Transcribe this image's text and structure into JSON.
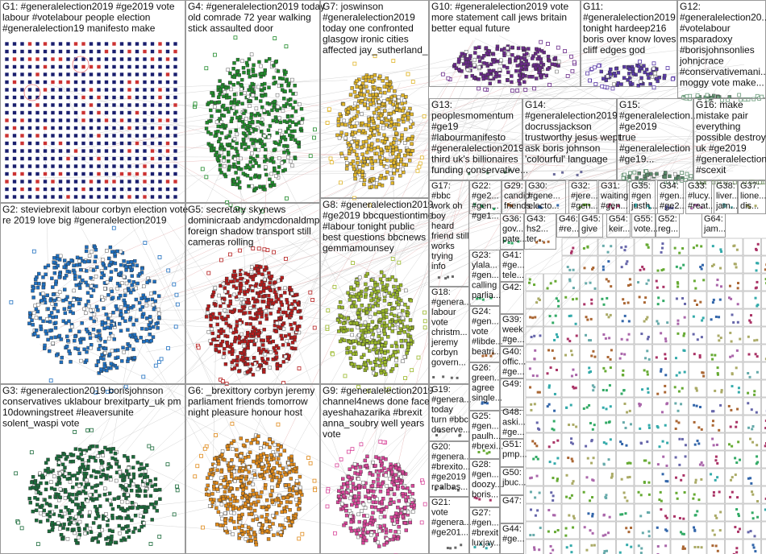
{
  "groups": [
    {
      "lines": [
        "G1: #generalelection2019 #ge2019 vote",
        "labour #votelabour people election",
        "#generalelection19 manifesto make"
      ]
    },
    {
      "lines": [
        "G4: #generalelection2019 today",
        "old comrade 72 year walking",
        "stick assaulted door"
      ]
    },
    {
      "lines": [
        "G7: joswinson",
        "#generalelection2019",
        "today one confronted",
        "glasgow ironic cities",
        "affected jay_sutherland_"
      ]
    },
    {
      "lines": [
        "G10: #generalelection2019 vote",
        "more statement call jews britain",
        "better equal future"
      ]
    },
    {
      "lines": [
        "G11:",
        "#generalelection2019",
        "tonight hardeep216",
        "boris over know loves",
        "cliff edges god"
      ]
    },
    {
      "lines": [
        "G12:",
        "#generalelection20...",
        "#votelabour",
        "msparadoxy",
        "#borisjohnsonlies",
        "johnjcrace",
        "#conservativemani...",
        "moggy vote make..."
      ]
    },
    {
      "lines": [
        "G13:",
        "peoplesmomentum",
        "#ge19",
        "#labourmanifesto",
        "#generalelection2019",
        "third uk's billionaires",
        "funding conservative..."
      ]
    },
    {
      "lines": [
        "G14:",
        "#generalelection2019",
        "docrussjackson",
        "trustworthy jesus wept",
        "ask boris johnson",
        "'colourful' language"
      ]
    },
    {
      "lines": [
        "G15:",
        "#generalelection...",
        "#ge2019",
        "true",
        "#generalelection",
        "#ge19..."
      ]
    },
    {
      "lines": [
        "G16: make",
        "mistake pair",
        "everything",
        "possible destroy",
        "uk #ge2019",
        "#generalelection...",
        "#scexit"
      ]
    },
    {
      "lines": [
        "G2: steviebrexit labour corbyn election vote",
        "re 2019 love big #generalelection2019"
      ]
    },
    {
      "lines": [
        "G5: secretary skynews",
        "dominicraab andymcdonaldmp",
        "foreign shadow transport still",
        "cameras rolling"
      ]
    },
    {
      "lines": [
        "G8: #generalelection2019",
        "#ge2019 bbcquestiontime",
        "#labour tonight public",
        "best questions bbcnews",
        "gemmamounsey"
      ]
    },
    {
      "lines": [
        "G3: #generalection2019 borisjohnson",
        "conservatives uklabour brexitparty_uk pm",
        "10downingstreet #leaversunite",
        "solent_waspi vote"
      ]
    },
    {
      "lines": [
        "G6: _brexittory corbyn jeremy",
        "parliament friends tomorrow",
        "night pleasure honour host"
      ]
    },
    {
      "lines": [
        "G9: #generalelection2019",
        "channel4news done face",
        "ayeshahazarika #brexit",
        "anna_soubry well years",
        "vote"
      ]
    },
    {
      "lines": [
        "G17:",
        "#bbc",
        "work oh",
        "boy",
        "heard",
        "friend still",
        "works",
        "trying",
        "info"
      ]
    },
    {
      "lines": [
        "G18:",
        "#genera...",
        "labour",
        "vote",
        "christm...",
        "jeremy",
        "corbyn",
        "govern..."
      ]
    },
    {
      "lines": [
        "G19:",
        "#genera...",
        "today",
        "turn #bbc",
        "deserve..."
      ]
    },
    {
      "lines": [
        "G20:",
        "#genera...",
        "#brexito...",
        "#ge2019",
        "realbas..."
      ]
    },
    {
      "lines": [
        "G21:",
        "vote",
        "#genera...",
        "#ge201..."
      ]
    },
    {
      "lines": [
        "G22:",
        "#ge2...",
        "#gen...",
        "#ge1..."
      ]
    },
    {
      "lines": [
        "G29:",
        "candid...",
        "friends..."
      ]
    },
    {
      "lines": [
        "G30:",
        "#gene...",
        "electo..."
      ]
    },
    {
      "lines": [
        "G32:",
        "#jere...",
        "#gen..."
      ]
    },
    {
      "lines": [
        "G31:",
        "waiting",
        "#gen..."
      ]
    },
    {
      "lines": [
        "G35:",
        "#gen",
        "justh..."
      ]
    },
    {
      "lines": [
        "G34:",
        "#gen...",
        "#ge2..."
      ]
    },
    {
      "lines": [
        "G33:",
        "#lucy...",
        "#reat..."
      ]
    },
    {
      "lines": [
        "G38:",
        "liver...",
        "jam..."
      ]
    },
    {
      "lines": [
        "G37:",
        "lione...",
        "dis..."
      ]
    },
    {
      "lines": [
        "G36:",
        "gov...",
        "pate..."
      ]
    },
    {
      "lines": [
        "G43:",
        "hs2...",
        "ter..."
      ]
    },
    {
      "lines": [
        "G46:",
        "#re..."
      ]
    },
    {
      "lines": [
        "G45:",
        "give"
      ]
    },
    {
      "lines": [
        "G54:",
        "keir..."
      ]
    },
    {
      "lines": [
        "G55:",
        "vote..."
      ]
    },
    {
      "lines": [
        "G52:",
        "reg..."
      ]
    },
    {
      "lines": [
        "G64:",
        "jam..."
      ]
    },
    {
      "lines": [
        "G23:",
        "ylala...",
        "#gen...",
        "calling",
        "parlia..."
      ]
    },
    {
      "lines": [
        "G24:",
        "#gen...",
        "vote",
        "#libde...",
        "beatri..."
      ]
    },
    {
      "lines": [
        "G26:",
        "green...",
        "agree",
        "single..."
      ]
    },
    {
      "lines": [
        "G25:",
        "#gen...",
        "paulh...",
        "#brexi..."
      ]
    },
    {
      "lines": [
        "G28:",
        "#gen...",
        "doozy...",
        "boris..."
      ]
    },
    {
      "lines": [
        "G27:",
        "#gen...",
        "#brexit",
        "luxjay..."
      ]
    },
    {
      "lines": [
        "G41:",
        "#ge...",
        "tele..."
      ]
    },
    {
      "lines": [
        "G42:"
      ]
    },
    {
      "lines": [
        "G39:",
        "week",
        "#ge..."
      ]
    },
    {
      "lines": [
        "G40:",
        "offic...",
        "#ge..."
      ]
    },
    {
      "lines": [
        "G49:"
      ]
    },
    {
      "lines": [
        "G48:",
        "aski...",
        "#ge..."
      ]
    },
    {
      "lines": [
        "G51:",
        "pmp..."
      ]
    },
    {
      "lines": [
        "G50:",
        "jbuc..."
      ]
    },
    {
      "lines": [
        "G47:"
      ]
    },
    {
      "lines": [
        "G44:",
        "#ge..."
      ]
    }
  ]
}
